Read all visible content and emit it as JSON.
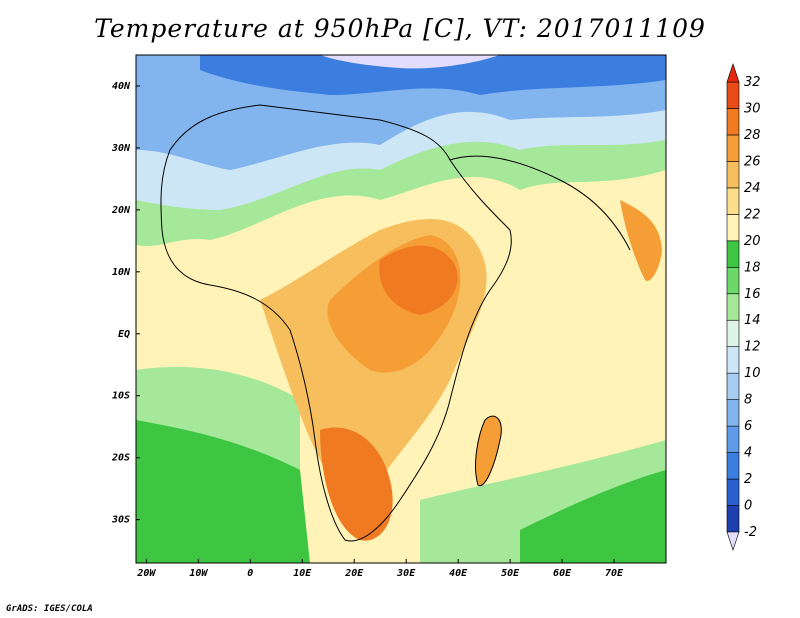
{
  "title": "Temperature at 950hPa [C], VT: 2017011109",
  "credit": "GrADS: IGES/COLA",
  "map": {
    "region": "Africa, Arabian Peninsula and western Indian Ocean",
    "lon_range": [
      -22,
      80
    ],
    "lat_range": [
      -37,
      45
    ],
    "lon_ticks": [
      {
        "value": -20,
        "label": "20W"
      },
      {
        "value": -10,
        "label": "10W"
      },
      {
        "value": 0,
        "label": "0"
      },
      {
        "value": 10,
        "label": "10E"
      },
      {
        "value": 20,
        "label": "20E"
      },
      {
        "value": 30,
        "label": "30E"
      },
      {
        "value": 40,
        "label": "40E"
      },
      {
        "value": 50,
        "label": "50E"
      },
      {
        "value": 60,
        "label": "60E"
      },
      {
        "value": 70,
        "label": "70E"
      }
    ],
    "lat_ticks": [
      {
        "value": 40,
        "label": "40N"
      },
      {
        "value": 30,
        "label": "30N"
      },
      {
        "value": 20,
        "label": "20N"
      },
      {
        "value": 10,
        "label": "10N"
      },
      {
        "value": 0,
        "label": "EQ"
      },
      {
        "value": -10,
        "label": "10S"
      },
      {
        "value": -20,
        "label": "20S"
      },
      {
        "value": -30,
        "label": "30S"
      }
    ]
  },
  "colorbar": {
    "levels": [
      {
        "label": "-2",
        "color": "#1a1a8c"
      },
      {
        "label": "0",
        "color": "#1e3fb0"
      },
      {
        "label": "2",
        "color": "#2a5fd0"
      },
      {
        "label": "4",
        "color": "#3c7ee0"
      },
      {
        "label": "6",
        "color": "#5f9be8"
      },
      {
        "label": "8",
        "color": "#82b5ee"
      },
      {
        "label": "10",
        "color": "#a8cdf2"
      },
      {
        "label": "12",
        "color": "#cde6f6"
      },
      {
        "label": "14",
        "color": "#def4e6"
      },
      {
        "label": "16",
        "color": "#a6e89a"
      },
      {
        "label": "18",
        "color": "#6cd86a"
      },
      {
        "label": "20",
        "color": "#3ec542"
      },
      {
        "label": "22",
        "color": "#fff3b8"
      },
      {
        "label": "24",
        "color": "#fbdd8a"
      },
      {
        "label": "26",
        "color": "#f7be5e"
      },
      {
        "label": "28",
        "color": "#f59e35"
      },
      {
        "label": "30",
        "color": "#f07a22"
      },
      {
        "label": "32",
        "color": "#e64b18"
      }
    ],
    "under_color": "#e2dcff",
    "over_color": "#e62810"
  }
}
